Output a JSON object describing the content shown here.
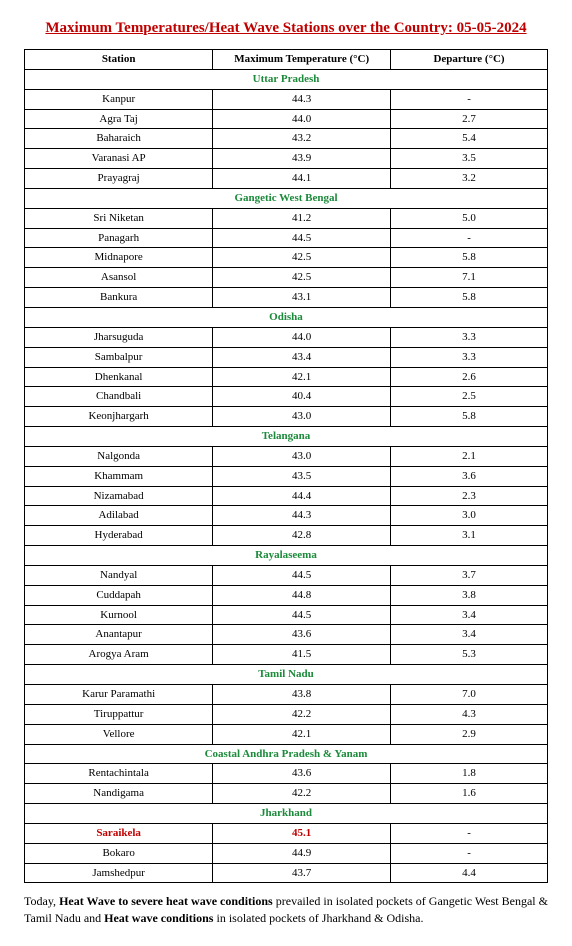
{
  "title": "Maximum Temperatures/Heat Wave Stations over the Country: 05-05-2024",
  "title_color": "#c00000",
  "columns": [
    "Station",
    "Maximum Temperature (°C)",
    "Departure (°C)"
  ],
  "col_widths": [
    "36%",
    "34%",
    "30%"
  ],
  "region_color": "#1b8a3a",
  "highlight_color": "#c00000",
  "border_color": "#000000",
  "background_color": "#ffffff",
  "font_size_table": 11,
  "font_size_title": 15,
  "font_size_footer": 12,
  "regions": [
    {
      "name": "Uttar Pradesh",
      "rows": [
        {
          "station": "Kanpur",
          "temp": "44.3",
          "dep": "-"
        },
        {
          "station": "Agra Taj",
          "temp": "44.0",
          "dep": "2.7"
        },
        {
          "station": "Baharaich",
          "temp": "43.2",
          "dep": "5.4"
        },
        {
          "station": "Varanasi AP",
          "temp": "43.9",
          "dep": "3.5"
        },
        {
          "station": "Prayagraj",
          "temp": "44.1",
          "dep": "3.2"
        }
      ]
    },
    {
      "name": "Gangetic West Bengal",
      "rows": [
        {
          "station": "Sri Niketan",
          "temp": "41.2",
          "dep": "5.0"
        },
        {
          "station": "Panagarh",
          "temp": "44.5",
          "dep": "-"
        },
        {
          "station": "Midnapore",
          "temp": "42.5",
          "dep": "5.8"
        },
        {
          "station": "Asansol",
          "temp": "42.5",
          "dep": "7.1"
        },
        {
          "station": "Bankura",
          "temp": "43.1",
          "dep": "5.8"
        }
      ]
    },
    {
      "name": "Odisha",
      "rows": [
        {
          "station": "Jharsuguda",
          "temp": "44.0",
          "dep": "3.3"
        },
        {
          "station": "Sambalpur",
          "temp": "43.4",
          "dep": "3.3"
        },
        {
          "station": "Dhenkanal",
          "temp": "42.1",
          "dep": "2.6"
        },
        {
          "station": "Chandbali",
          "temp": "40.4",
          "dep": "2.5"
        },
        {
          "station": "Keonjhargarh",
          "temp": "43.0",
          "dep": "5.8"
        }
      ]
    },
    {
      "name": "Telangana",
      "rows": [
        {
          "station": "Nalgonda",
          "temp": "43.0",
          "dep": "2.1"
        },
        {
          "station": "Khammam",
          "temp": "43.5",
          "dep": "3.6"
        },
        {
          "station": "Nizamabad",
          "temp": "44.4",
          "dep": "2.3"
        },
        {
          "station": "Adilabad",
          "temp": "44.3",
          "dep": "3.0"
        },
        {
          "station": "Hyderabad",
          "temp": "42.8",
          "dep": "3.1"
        }
      ]
    },
    {
      "name": "Rayalaseema",
      "rows": [
        {
          "station": "Nandyal",
          "temp": "44.5",
          "dep": "3.7"
        },
        {
          "station": "Cuddapah",
          "temp": "44.8",
          "dep": "3.8"
        },
        {
          "station": "Kurnool",
          "temp": "44.5",
          "dep": "3.4"
        },
        {
          "station": "Anantapur",
          "temp": "43.6",
          "dep": "3.4"
        },
        {
          "station": "Arogya Aram",
          "temp": "41.5",
          "dep": "5.3"
        }
      ]
    },
    {
      "name": "Tamil Nadu",
      "rows": [
        {
          "station": "Karur Paramathi",
          "temp": "43.8",
          "dep": "7.0"
        },
        {
          "station": "Tiruppattur",
          "temp": "42.2",
          "dep": "4.3"
        },
        {
          "station": "Vellore",
          "temp": "42.1",
          "dep": "2.9"
        }
      ]
    },
    {
      "name": "Coastal Andhra Pradesh & Yanam",
      "rows": [
        {
          "station": "Rentachintala",
          "temp": "43.6",
          "dep": "1.8"
        },
        {
          "station": "Nandigama",
          "temp": "42.2",
          "dep": "1.6"
        }
      ]
    },
    {
      "name": "Jharkhand",
      "rows": [
        {
          "station": "Saraikela",
          "temp": "45.1",
          "dep": "-",
          "highlight": true
        },
        {
          "station": "Bokaro",
          "temp": "44.9",
          "dep": "-"
        },
        {
          "station": "Jamshedpur",
          "temp": "43.7",
          "dep": "4.4"
        }
      ]
    }
  ],
  "footer": {
    "prefix": "Today, ",
    "bold1": "Heat Wave to severe heat wave conditions",
    "mid1": " prevailed in isolated pockets of Gangetic West Bengal & Tamil Nadu and ",
    "bold2": "Heat wave conditions",
    "mid2": " in isolated pockets of Jharkhand & Odisha."
  }
}
